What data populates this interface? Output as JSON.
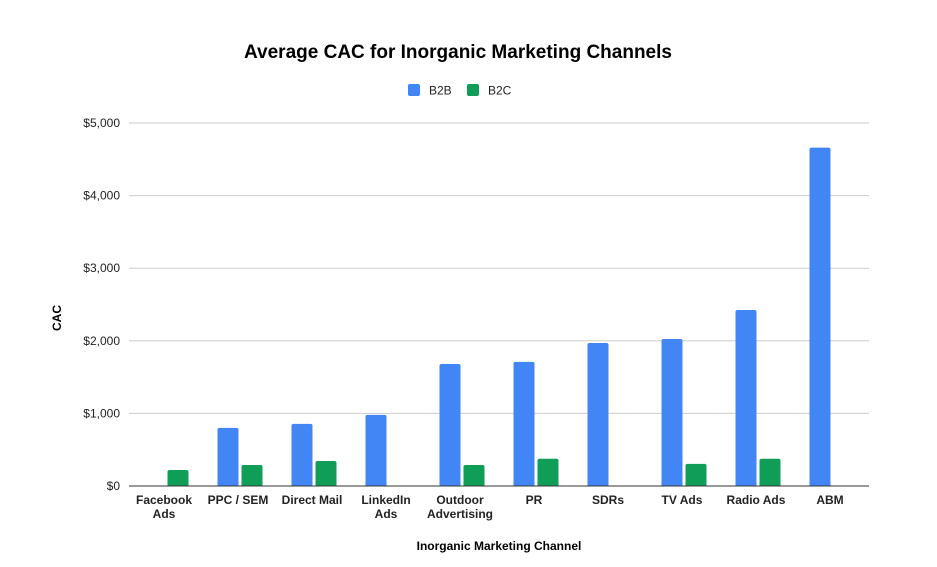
{
  "chart_data": {
    "type": "bar",
    "title": "Average CAC for Inorganic Marketing Channels",
    "xlabel": "Inorganic Marketing Channel",
    "ylabel": "CAC",
    "ylim": [
      0,
      5000
    ],
    "yticks": [
      0,
      1000,
      2000,
      3000,
      4000,
      5000
    ],
    "ytick_labels": [
      "$0",
      "$1,000",
      "$2,000",
      "$3,000",
      "$4,000",
      "$5,000"
    ],
    "grid": true,
    "legend_position": "top-center",
    "categories": [
      "Facebook Ads",
      "PPC / SEM",
      "Direct Mail",
      "LinkedIn Ads",
      "Outdoor Advertising",
      "PR",
      "SDRs",
      "TV Ads",
      "Radio Ads",
      "ABM"
    ],
    "category_lines": [
      [
        "Facebook",
        "Ads"
      ],
      [
        "PPC / SEM"
      ],
      [
        "Direct Mail"
      ],
      [
        "LinkedIn",
        "Ads"
      ],
      [
        "Outdoor",
        "Advertising"
      ],
      [
        "PR"
      ],
      [
        "SDRs"
      ],
      [
        "TV Ads"
      ],
      [
        "Radio Ads"
      ],
      [
        "ABM"
      ]
    ],
    "series": [
      {
        "name": "B2B",
        "color": "#4285f4",
        "values": [
          null,
          800,
          855,
          980,
          1680,
          1710,
          1970,
          2025,
          2425,
          4660
        ]
      },
      {
        "name": "B2C",
        "color": "#0f9d58",
        "values": [
          220,
          290,
          345,
          null,
          290,
          375,
          null,
          305,
          375,
          null
        ]
      }
    ]
  }
}
